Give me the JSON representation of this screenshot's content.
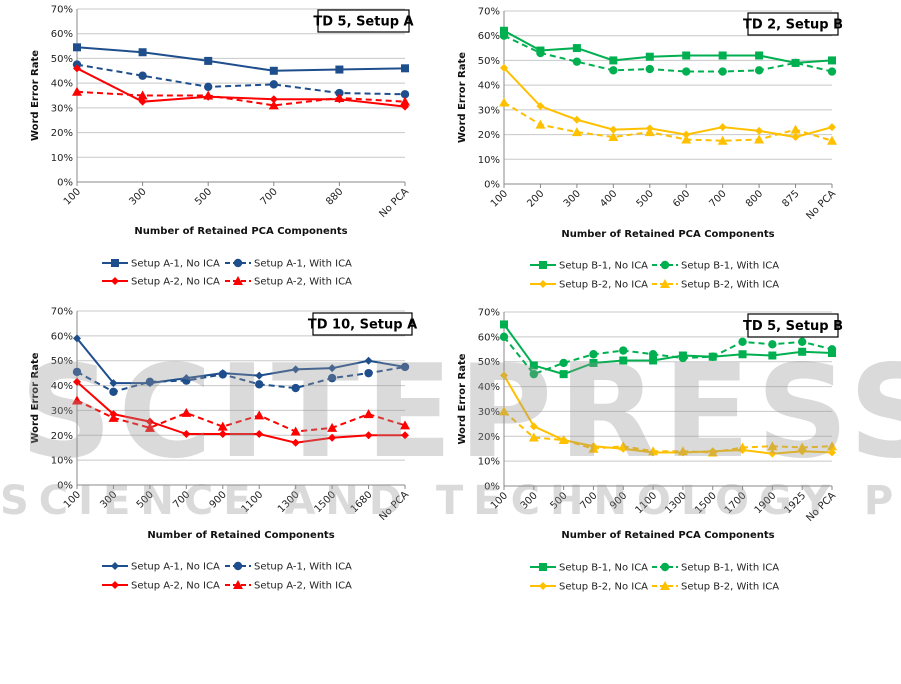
{
  "watermark": {
    "main": "SCITEPRESS",
    "sub": "SCIENCE AND TECHNOLOGY PUBLICATIONS"
  },
  "chart_data": [
    {
      "type": "line",
      "title": "TD 5, Setup A",
      "xlabel": "Number of Retained PCA Components",
      "ylabel": "Word Error Rate",
      "ylim": [
        0,
        70
      ],
      "yticks": [
        "0%",
        "10%",
        "20%",
        "30%",
        "40%",
        "50%",
        "60%",
        "70%"
      ],
      "grid": true,
      "legend": "bottom",
      "categories": [
        "100",
        "300",
        "500",
        "700",
        "880",
        "No PCA"
      ],
      "series": [
        {
          "name": "Setup A-1, No ICA",
          "color": "#1f4e8c",
          "dashed": false,
          "marker": "square",
          "values": [
            54.5,
            52.5,
            49,
            45,
            45.5,
            46
          ]
        },
        {
          "name": "Setup A-1, With ICA",
          "color": "#1f4e8c",
          "dashed": true,
          "marker": "circle",
          "values": [
            47.5,
            43,
            38.5,
            39.5,
            36,
            35.5
          ]
        },
        {
          "name": "Setup A-2, No ICA",
          "color": "#ff0000",
          "dashed": false,
          "marker": "diamond",
          "values": [
            46,
            32.5,
            34.5,
            33.5,
            33.5,
            30.5
          ]
        },
        {
          "name": "Setup A-2, With ICA",
          "color": "#ff0000",
          "dashed": true,
          "marker": "triangle",
          "values": [
            36.5,
            35,
            35,
            31,
            34,
            32.5
          ]
        }
      ]
    },
    {
      "type": "line",
      "title": "TD 2, Setup B",
      "xlabel": "Number of Retained PCA Components",
      "ylabel": "Word Error Rate",
      "ylim": [
        0,
        70
      ],
      "yticks": [
        "0%",
        "10%",
        "20%",
        "30%",
        "40%",
        "50%",
        "60%",
        "70%"
      ],
      "grid": true,
      "legend": "bottom",
      "categories": [
        "100",
        "200",
        "300",
        "400",
        "500",
        "600",
        "700",
        "800",
        "875",
        "No PCA"
      ],
      "series": [
        {
          "name": "Setup B-1, No ICA",
          "color": "#00b050",
          "dashed": false,
          "marker": "square",
          "values": [
            62,
            54,
            55,
            50,
            51.5,
            52,
            52,
            52,
            49,
            50
          ]
        },
        {
          "name": "Setup B-1, With ICA",
          "color": "#00b050",
          "dashed": true,
          "marker": "circle",
          "values": [
            60,
            53,
            49.5,
            46,
            46.5,
            45.5,
            45.5,
            46,
            49,
            45.5
          ]
        },
        {
          "name": "Setup B-2, No ICA",
          "color": "#ffc000",
          "dashed": false,
          "marker": "diamond",
          "values": [
            47,
            31.5,
            26,
            22,
            22.5,
            20,
            23,
            21.5,
            19,
            23
          ]
        },
        {
          "name": "Setup B-2, With ICA",
          "color": "#ffc000",
          "dashed": true,
          "marker": "triangle",
          "values": [
            33,
            24,
            21,
            19,
            21,
            18,
            17.5,
            18,
            22,
            17.5
          ]
        }
      ]
    },
    {
      "type": "line",
      "title": "TD 10, Setup A",
      "xlabel": "Number of Retained Components",
      "ylabel": "Word Error Rate",
      "ylim": [
        0,
        70
      ],
      "yticks": [
        "0%",
        "10%",
        "20%",
        "30%",
        "40%",
        "50%",
        "60%",
        "70%"
      ],
      "grid": true,
      "legend": "bottom",
      "categories": [
        "100",
        "300",
        "500",
        "700",
        "900",
        "1100",
        "1300",
        "1500",
        "1680",
        "No PCA"
      ],
      "series": [
        {
          "name": "Setup A-1, No ICA",
          "color": "#1f4e8c",
          "dashed": false,
          "marker": "diamond",
          "values": [
            59,
            41,
            41,
            43,
            45,
            44,
            46.5,
            47,
            50,
            47.5
          ]
        },
        {
          "name": "Setup A-1, With ICA",
          "color": "#1f4e8c",
          "dashed": true,
          "marker": "circle",
          "values": [
            45.5,
            37.5,
            41.5,
            42,
            44.5,
            40.5,
            39,
            43,
            45,
            47.5
          ]
        },
        {
          "name": "Setup A-2, No ICA",
          "color": "#ff0000",
          "dashed": false,
          "marker": "diamond",
          "values": [
            41.5,
            28.5,
            25.5,
            20.5,
            20.5,
            20.5,
            17,
            19,
            20,
            20
          ]
        },
        {
          "name": "Setup A-2, With ICA",
          "color": "#ff0000",
          "dashed": true,
          "marker": "triangle",
          "values": [
            34,
            27,
            23,
            29,
            23.5,
            28,
            21.5,
            23,
            28.5,
            24
          ]
        }
      ]
    },
    {
      "type": "line",
      "title": "TD 5, Setup B",
      "xlabel": "Number of Retained PCA Components",
      "ylabel": "Word Error Rate",
      "ylim": [
        0,
        70
      ],
      "yticks": [
        "0%",
        "10%",
        "20%",
        "30%",
        "40%",
        "50%",
        "60%",
        "70%"
      ],
      "grid": true,
      "legend": "bottom",
      "categories": [
        "100",
        "300",
        "500",
        "700",
        "900",
        "1100",
        "1300",
        "1500",
        "1700",
        "1900",
        "1925",
        "No PCA"
      ],
      "series": [
        {
          "name": "Setup B-1, No ICA",
          "color": "#00b050",
          "dashed": false,
          "marker": "square",
          "values": [
            65,
            48.5,
            45,
            49.5,
            50.5,
            50.5,
            52.5,
            52,
            53,
            52.5,
            54,
            53.5
          ]
        },
        {
          "name": "Setup B-1, With ICA",
          "color": "#00b050",
          "dashed": true,
          "marker": "circle",
          "values": [
            60,
            45,
            49.5,
            53,
            54.5,
            53,
            51.5,
            52,
            58,
            57,
            58,
            55
          ]
        },
        {
          "name": "Setup B-2, No ICA",
          "color": "#ffc000",
          "dashed": false,
          "marker": "diamond",
          "values": [
            44.5,
            24,
            18.5,
            16,
            15,
            13.5,
            13.5,
            14,
            14.5,
            13,
            14,
            13.5
          ]
        },
        {
          "name": "Setup B-2, With ICA",
          "color": "#ffc000",
          "dashed": true,
          "marker": "triangle",
          "values": [
            30,
            19.5,
            18.5,
            15,
            16,
            14,
            14,
            13.5,
            15.5,
            16,
            15.5,
            16
          ]
        }
      ]
    }
  ]
}
